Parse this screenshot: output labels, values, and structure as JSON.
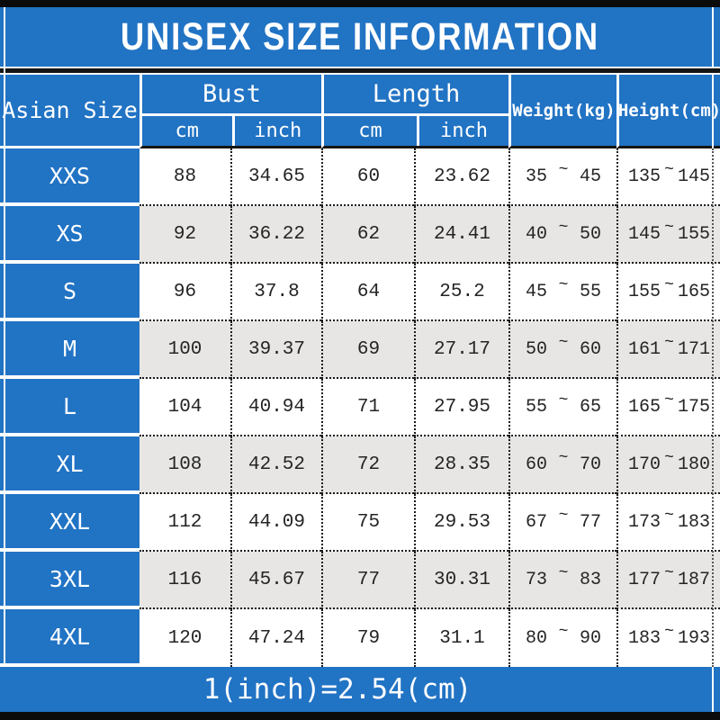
{
  "header": {
    "size_col": "Asian Size",
    "bust": "Bust",
    "length": "Length",
    "weight": "Weight(kg)",
    "height": "Height(cm)",
    "cm": "cm",
    "inch": "inch"
  },
  "range_separator": "~",
  "colors": {
    "accent_blue": "#2173c4",
    "row_stripe": "#e7e6e4",
    "border_black": "#0b0b0b"
  },
  "chart_data": {
    "type": "table",
    "title": "UNISEX SIZE INFORMATION",
    "footnote": "1(inch)=2.54(cm)",
    "columns": [
      "Asian Size",
      "Bust cm",
      "Bust inch",
      "Length cm",
      "Length inch",
      "Weight(kg)",
      "Height(cm)"
    ],
    "rows": [
      {
        "size": "XXS",
        "bust_cm": "88",
        "bust_inch": "34.65",
        "length_cm": "60",
        "length_inch": "23.62",
        "weight_min": "35",
        "weight_max": "45",
        "height_min": "135",
        "height_max": "145"
      },
      {
        "size": "XS",
        "bust_cm": "92",
        "bust_inch": "36.22",
        "length_cm": "62",
        "length_inch": "24.41",
        "weight_min": "40",
        "weight_max": "50",
        "height_min": "145",
        "height_max": "155"
      },
      {
        "size": "S",
        "bust_cm": "96",
        "bust_inch": "37.8",
        "length_cm": "64",
        "length_inch": "25.2",
        "weight_min": "45",
        "weight_max": "55",
        "height_min": "155",
        "height_max": "165"
      },
      {
        "size": "M",
        "bust_cm": "100",
        "bust_inch": "39.37",
        "length_cm": "69",
        "length_inch": "27.17",
        "weight_min": "50",
        "weight_max": "60",
        "height_min": "161",
        "height_max": "171"
      },
      {
        "size": "L",
        "bust_cm": "104",
        "bust_inch": "40.94",
        "length_cm": "71",
        "length_inch": "27.95",
        "weight_min": "55",
        "weight_max": "65",
        "height_min": "165",
        "height_max": "175"
      },
      {
        "size": "XL",
        "bust_cm": "108",
        "bust_inch": "42.52",
        "length_cm": "72",
        "length_inch": "28.35",
        "weight_min": "60",
        "weight_max": "70",
        "height_min": "170",
        "height_max": "180"
      },
      {
        "size": "XXL",
        "bust_cm": "112",
        "bust_inch": "44.09",
        "length_cm": "75",
        "length_inch": "29.53",
        "weight_min": "67",
        "weight_max": "77",
        "height_min": "173",
        "height_max": "183"
      },
      {
        "size": "3XL",
        "bust_cm": "116",
        "bust_inch": "45.67",
        "length_cm": "77",
        "length_inch": "30.31",
        "weight_min": "73",
        "weight_max": "83",
        "height_min": "177",
        "height_max": "187"
      },
      {
        "size": "4XL",
        "bust_cm": "120",
        "bust_inch": "47.24",
        "length_cm": "79",
        "length_inch": "31.1",
        "weight_min": "80",
        "weight_max": "90",
        "height_min": "183",
        "height_max": "193"
      }
    ]
  }
}
